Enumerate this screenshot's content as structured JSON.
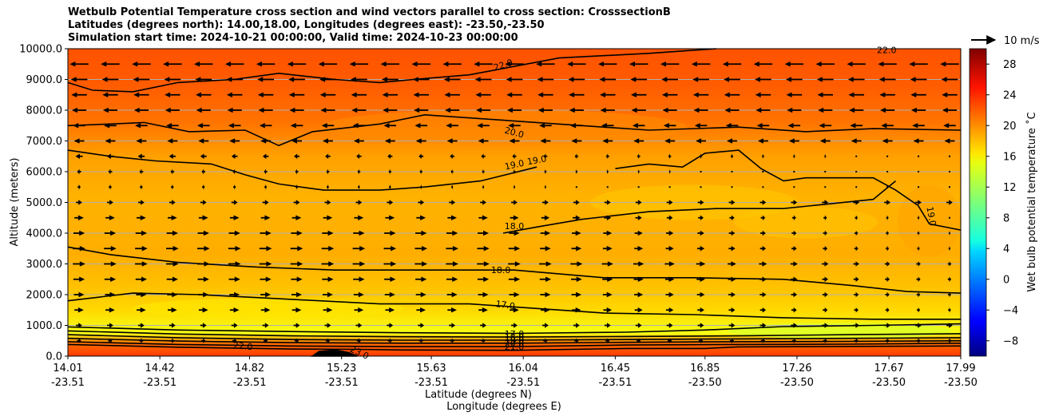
{
  "title_lines": [
    "Wetbulb Potential Temperature cross section and wind vectors parallel to cross section: CrosssectionB",
    "Latitudes (degrees north): 14.00,18.00, Longitudes (degrees east): -23.50,-23.50",
    "Simulation start time: 2024-10-21 00:00:00, Valid time: 2024-10-23 00:00:00"
  ],
  "chart_data": {
    "type": "contour",
    "title": "Wetbulb Potential Temperature cross section and wind vectors parallel to cross section: CrosssectionB",
    "ylabel": "Altitude (meters)",
    "xlabel_lat": "Latitude (degrees N)",
    "xlabel_lon": "Longitude (degrees E)",
    "ylim": [
      0,
      10000
    ],
    "yticks": [
      "0.0",
      "1000.0",
      "2000.0",
      "3000.0",
      "4000.0",
      "5000.0",
      "6000.0",
      "7000.0",
      "8000.0",
      "9000.0",
      "10000.0"
    ],
    "xlim": [
      14.01,
      17.99
    ],
    "xticks": [
      {
        "lat": "14.01",
        "lon": "-23.51"
      },
      {
        "lat": "14.42",
        "lon": "-23.51"
      },
      {
        "lat": "14.82",
        "lon": "-23.51"
      },
      {
        "lat": "15.23",
        "lon": "-23.51"
      },
      {
        "lat": "15.63",
        "lon": "-23.51"
      },
      {
        "lat": "16.04",
        "lon": "-23.51"
      },
      {
        "lat": "16.45",
        "lon": "-23.51"
      },
      {
        "lat": "16.85",
        "lon": "-23.50"
      },
      {
        "lat": "17.26",
        "lon": "-23.50"
      },
      {
        "lat": "17.67",
        "lon": "-23.50"
      },
      {
        "lat": "17.99",
        "lon": "-23.50"
      }
    ],
    "colorbar": {
      "label": "Wet bulb potential temperature ˚C",
      "range": [
        -10,
        30
      ],
      "ticks": [
        "−8",
        "−4",
        "0",
        "4",
        "8",
        "12",
        "16",
        "20",
        "24",
        "28"
      ]
    },
    "quiver_key": "10 m/s",
    "contour_labels": [
      {
        "text": "22.0",
        "lat": 15.95,
        "alt": 9480,
        "angle": -18
      },
      {
        "text": "20.0",
        "lat": 16.0,
        "alt": 7280,
        "angle": 15
      },
      {
        "text": "19.0",
        "lat": 16.0,
        "alt": 6230,
        "angle": -12
      },
      {
        "text": "19.0",
        "lat": 16.1,
        "alt": 6380,
        "angle": -10
      },
      {
        "text": "18.0",
        "lat": 16.0,
        "alt": 4230,
        "angle": 0
      },
      {
        "text": "18.0",
        "lat": 15.94,
        "alt": 2800,
        "angle": 0
      },
      {
        "text": "17.0",
        "lat": 15.96,
        "alt": 1670,
        "angle": 8
      },
      {
        "text": "19.0",
        "lat": 17.86,
        "alt": 4550,
        "angle": 80
      },
      {
        "text": "22.0",
        "lat": 14.79,
        "alt": 330,
        "angle": 5
      },
      {
        "text": "23.0",
        "lat": 15.31,
        "alt": 120,
        "angle": 25
      },
      {
        "text": "22.0",
        "lat": 17.66,
        "alt": 9960,
        "angle": 0
      },
      {
        "text": "17.0",
        "lat": 16.0,
        "alt": 730,
        "angle": 0
      },
      {
        "text": "18.0",
        "lat": 16.0,
        "alt": 620,
        "angle": 0
      },
      {
        "text": "19.0",
        "lat": 16.0,
        "alt": 520,
        "angle": 0
      },
      {
        "text": "20.0",
        "lat": 16.0,
        "alt": 420,
        "angle": 0
      },
      {
        "text": "21.0",
        "lat": 16.0,
        "alt": 310,
        "angle": 0
      }
    ],
    "contour_lines": [
      {
        "level": 22,
        "points": [
          [
            14.01,
            8900
          ],
          [
            14.12,
            8650
          ],
          [
            14.3,
            8600
          ],
          [
            14.5,
            8900
          ],
          [
            14.75,
            9000
          ],
          [
            14.95,
            9200
          ],
          [
            15.2,
            9000
          ],
          [
            15.4,
            8900
          ],
          [
            15.55,
            9000
          ],
          [
            15.8,
            9150
          ],
          [
            16.2,
            9700
          ],
          [
            16.6,
            9850
          ],
          [
            16.9,
            10000
          ]
        ]
      },
      {
        "level": 20,
        "points": [
          [
            14.01,
            7500
          ],
          [
            14.2,
            7550
          ],
          [
            14.35,
            7600
          ],
          [
            14.55,
            7300
          ],
          [
            14.8,
            7350
          ],
          [
            14.95,
            6850
          ],
          [
            15.1,
            7300
          ],
          [
            15.4,
            7550
          ],
          [
            15.6,
            7850
          ],
          [
            15.9,
            7700
          ],
          [
            16.3,
            7500
          ],
          [
            16.6,
            7350
          ],
          [
            17.0,
            7450
          ],
          [
            17.3,
            7300
          ],
          [
            17.6,
            7400
          ],
          [
            17.99,
            7350
          ]
        ]
      },
      {
        "level": 19,
        "points": [
          [
            14.01,
            6700
          ],
          [
            14.2,
            6500
          ],
          [
            14.4,
            6350
          ],
          [
            14.65,
            6250
          ],
          [
            14.8,
            5900
          ],
          [
            14.95,
            5600
          ],
          [
            15.15,
            5400
          ],
          [
            15.4,
            5400
          ],
          [
            15.6,
            5500
          ],
          [
            15.85,
            5700
          ],
          [
            16.1,
            6150
          ]
        ]
      },
      {
        "level": 19,
        "points": [
          [
            16.45,
            6100
          ],
          [
            16.6,
            6250
          ],
          [
            16.75,
            6150
          ],
          [
            16.85,
            6600
          ],
          [
            17.0,
            6700
          ],
          [
            17.1,
            6100
          ],
          [
            17.2,
            5700
          ],
          [
            17.3,
            5800
          ],
          [
            17.45,
            5800
          ],
          [
            17.6,
            5800
          ],
          [
            17.7,
            5400
          ],
          [
            17.8,
            4900
          ],
          [
            17.85,
            4300
          ],
          [
            17.99,
            4100
          ]
        ]
      },
      {
        "level": 18,
        "points": [
          [
            15.95,
            4000
          ],
          [
            16.1,
            4200
          ],
          [
            16.3,
            4450
          ],
          [
            16.6,
            4700
          ],
          [
            16.9,
            4800
          ],
          [
            17.2,
            4800
          ],
          [
            17.4,
            4950
          ],
          [
            17.6,
            5100
          ],
          [
            17.7,
            5700
          ]
        ]
      },
      {
        "level": 18,
        "points": [
          [
            14.01,
            3550
          ],
          [
            14.2,
            3300
          ],
          [
            14.5,
            3050
          ],
          [
            14.85,
            2900
          ],
          [
            15.2,
            2800
          ],
          [
            15.6,
            2800
          ],
          [
            16.0,
            2800
          ],
          [
            16.4,
            2550
          ],
          [
            16.8,
            2550
          ],
          [
            17.2,
            2500
          ],
          [
            17.5,
            2300
          ],
          [
            17.75,
            2100
          ],
          [
            17.99,
            2050
          ]
        ]
      },
      {
        "level": 17,
        "points": [
          [
            14.01,
            1800
          ],
          [
            14.3,
            2050
          ],
          [
            14.6,
            2000
          ],
          [
            15.0,
            1850
          ],
          [
            15.4,
            1700
          ],
          [
            15.8,
            1700
          ],
          [
            16.1,
            1550
          ],
          [
            16.4,
            1400
          ],
          [
            16.8,
            1350
          ],
          [
            17.2,
            1250
          ],
          [
            17.6,
            1200
          ],
          [
            17.99,
            1200
          ]
        ]
      },
      {
        "level": 17,
        "points": [
          [
            14.01,
            950
          ],
          [
            14.5,
            850
          ],
          [
            15.0,
            800
          ],
          [
            15.5,
            760
          ],
          [
            16.0,
            740
          ],
          [
            16.5,
            780
          ],
          [
            16.85,
            850
          ],
          [
            17.2,
            960
          ],
          [
            17.6,
            1000
          ],
          [
            17.99,
            1050
          ]
        ]
      },
      {
        "level": 18,
        "points": [
          [
            14.01,
            820
          ],
          [
            14.5,
            720
          ],
          [
            15.0,
            660
          ],
          [
            15.5,
            630
          ],
          [
            16.0,
            620
          ],
          [
            16.5,
            640
          ],
          [
            17.0,
            660
          ],
          [
            17.5,
            700
          ],
          [
            17.99,
            730
          ]
        ]
      },
      {
        "level": 19,
        "points": [
          [
            14.01,
            700
          ],
          [
            14.5,
            600
          ],
          [
            15.0,
            540
          ],
          [
            15.5,
            520
          ],
          [
            16.0,
            520
          ],
          [
            16.5,
            540
          ],
          [
            17.0,
            560
          ],
          [
            17.5,
            580
          ],
          [
            17.99,
            600
          ]
        ]
      },
      {
        "level": 20,
        "points": [
          [
            14.01,
            580
          ],
          [
            14.5,
            490
          ],
          [
            15.0,
            440
          ],
          [
            15.5,
            420
          ],
          [
            16.0,
            420
          ],
          [
            16.5,
            450
          ],
          [
            17.0,
            470
          ],
          [
            17.5,
            480
          ],
          [
            17.99,
            500
          ]
        ]
      },
      {
        "level": 21,
        "points": [
          [
            14.01,
            470
          ],
          [
            14.5,
            380
          ],
          [
            15.0,
            330
          ],
          [
            15.5,
            310
          ],
          [
            16.0,
            310
          ],
          [
            16.5,
            360
          ],
          [
            17.0,
            380
          ],
          [
            17.5,
            390
          ],
          [
            17.99,
            420
          ]
        ]
      },
      {
        "level": 22,
        "points": [
          [
            14.01,
            380
          ],
          [
            14.5,
            290
          ],
          [
            15.0,
            230
          ],
          [
            15.3,
            220
          ],
          [
            15.5,
            200
          ],
          [
            16.0,
            190
          ],
          [
            16.5,
            250
          ],
          [
            16.85,
            250
          ],
          [
            17.0,
            300
          ],
          [
            17.99,
            330
          ]
        ]
      },
      {
        "level": 23,
        "points": [
          [
            15.1,
            0
          ],
          [
            15.13,
            150
          ],
          [
            15.2,
            200
          ],
          [
            15.26,
            120
          ],
          [
            15.3,
            0
          ]
        ]
      }
    ],
    "wind_rows": [
      {
        "alt": 9500,
        "u": -18
      },
      {
        "alt": 9000,
        "u": -16
      },
      {
        "alt": 8500,
        "u": -15
      },
      {
        "alt": 8000,
        "u": -14
      },
      {
        "alt": 7500,
        "u": -12
      },
      {
        "alt": 7000,
        "u": -10
      },
      {
        "alt": 6500,
        "u": -7
      },
      {
        "alt": 6000,
        "u": -4
      },
      {
        "alt": 5500,
        "u": 3
      },
      {
        "alt": 5000,
        "u": 6
      },
      {
        "alt": 4500,
        "u": 9
      },
      {
        "alt": 4000,
        "u": 11
      },
      {
        "alt": 3500,
        "u": 12
      },
      {
        "alt": 3000,
        "u": 12
      },
      {
        "alt": 2500,
        "u": 11
      },
      {
        "alt": 2000,
        "u": 10
      },
      {
        "alt": 1500,
        "u": 9
      },
      {
        "alt": 1000,
        "u": 6
      },
      {
        "alt": 500,
        "u": 4
      }
    ]
  }
}
